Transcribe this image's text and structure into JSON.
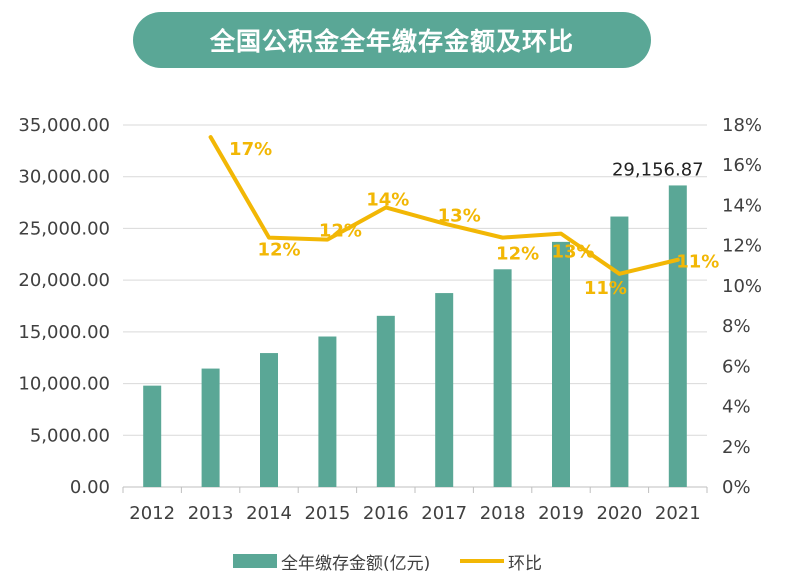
{
  "title": "全国公积金全年缴存金额及环比",
  "chart_data": {
    "type": "bar+line",
    "categories": [
      "2012",
      "2013",
      "2014",
      "2015",
      "2016",
      "2017",
      "2018",
      "2019",
      "2020",
      "2021"
    ],
    "series": [
      {
        "name": "全年缴存金额(亿元)",
        "type": "bar",
        "axis": "left",
        "color": "#5aa796",
        "values": [
          9800,
          11450,
          12950,
          14550,
          16550,
          18750,
          21050,
          23700,
          26150,
          29156.87
        ]
      },
      {
        "name": "环比",
        "type": "line",
        "axis": "right",
        "color": "#f2b705",
        "values": [
          null,
          17.4,
          12.4,
          12.3,
          13.9,
          13.1,
          12.4,
          12.6,
          10.6,
          11.3
        ],
        "labels": [
          "",
          "17%",
          "12%",
          "12%",
          "14%",
          "13%",
          "12%",
          "13%",
          "11%",
          "11%"
        ]
      }
    ],
    "left_axis": {
      "min": 0,
      "max": 35000,
      "ticks": [
        "0.00",
        "5,000.00",
        "10,000.00",
        "15,000.00",
        "20,000.00",
        "25,000.00",
        "30,000.00",
        "35,000.00"
      ]
    },
    "right_axis": {
      "min": 0,
      "max": 18,
      "ticks": [
        "0%",
        "2%",
        "4%",
        "6%",
        "8%",
        "10%",
        "12%",
        "14%",
        "16%",
        "18%"
      ]
    },
    "last_bar_label": "29,156.87",
    "grid": true,
    "legend_position": "bottom"
  },
  "legend": {
    "bar": "全年缴存金额(亿元)",
    "line": "环比"
  }
}
